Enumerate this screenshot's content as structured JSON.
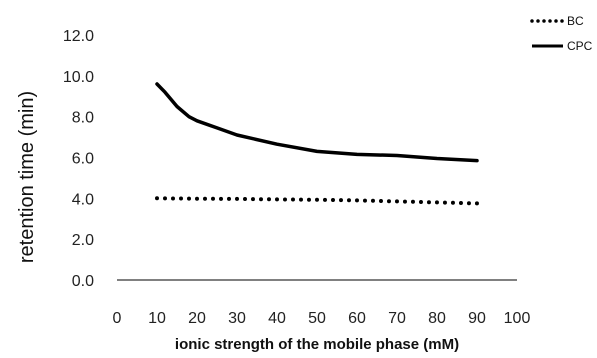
{
  "chart_data": {
    "type": "line",
    "xlabel": "ionic strength of the mobile phase (mM)",
    "ylabel": "retention time (min)",
    "xlim": [
      0,
      100
    ],
    "ylim": [
      0,
      12
    ],
    "x_ticks": [
      "0",
      "10",
      "20",
      "30",
      "40",
      "50",
      "60",
      "70",
      "80",
      "90",
      "100"
    ],
    "y_ticks": [
      "0.0",
      "2.0",
      "4.0",
      "6.0",
      "8.0",
      "10.0",
      "12.0"
    ],
    "grid": false,
    "legend_position": "top-right",
    "series": [
      {
        "name": "BC",
        "style": "dotted",
        "color": "#000000",
        "x": [
          10,
          20,
          30,
          40,
          50,
          60,
          70,
          80,
          90
        ],
        "y": [
          4.0,
          3.98,
          3.97,
          3.95,
          3.93,
          3.9,
          3.85,
          3.8,
          3.75
        ]
      },
      {
        "name": "CPC",
        "style": "solid",
        "color": "#000000",
        "x": [
          10,
          12,
          15,
          18,
          20,
          25,
          30,
          40,
          50,
          60,
          70,
          80,
          90
        ],
        "y": [
          9.6,
          9.2,
          8.5,
          8.0,
          7.8,
          7.45,
          7.1,
          6.65,
          6.3,
          6.15,
          6.1,
          5.95,
          5.85
        ]
      }
    ]
  }
}
